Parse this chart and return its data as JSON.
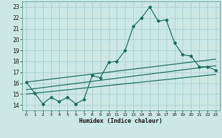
{
  "xlabel": "Humidex (Indice chaleur)",
  "background_color": "#cce8e4",
  "grid_color": "#aacfcb",
  "line_color": "#1a6b5a",
  "xlim": [
    -0.5,
    23.5
  ],
  "ylim": [
    13.5,
    23.5
  ],
  "xticks": [
    0,
    1,
    2,
    3,
    4,
    5,
    6,
    7,
    8,
    9,
    10,
    11,
    12,
    13,
    14,
    15,
    16,
    17,
    18,
    19,
    20,
    21,
    22,
    23
  ],
  "yticks": [
    14,
    15,
    16,
    17,
    18,
    19,
    20,
    21,
    22,
    23
  ],
  "main_series_x": [
    0,
    1,
    2,
    3,
    4,
    5,
    6,
    7,
    8,
    9,
    10,
    11,
    12,
    13,
    14,
    15,
    16,
    17,
    18,
    19,
    20,
    21,
    22,
    23
  ],
  "main_series_y": [
    16.1,
    15.1,
    14.1,
    14.7,
    14.3,
    14.7,
    14.1,
    14.5,
    16.7,
    16.5,
    17.9,
    18.0,
    19.0,
    21.2,
    22.0,
    23.0,
    21.7,
    21.8,
    19.7,
    18.6,
    18.5,
    17.5,
    17.5,
    17.2
  ],
  "trend1_x": [
    0,
    23
  ],
  "trend1_y": [
    16.1,
    18.2
  ],
  "trend2_x": [
    0,
    23
  ],
  "trend2_y": [
    15.4,
    17.6
  ],
  "trend3_x": [
    0,
    23
  ],
  "trend3_y": [
    15.0,
    16.8
  ]
}
